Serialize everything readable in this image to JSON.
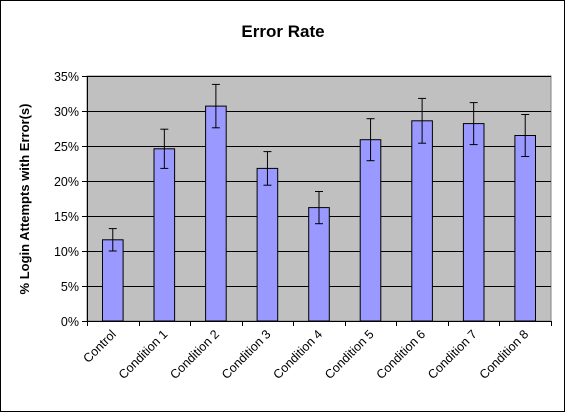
{
  "chart_data": {
    "type": "bar",
    "title": "Error Rate",
    "xlabel": "",
    "ylabel": "% Login Attempts with Error(s)",
    "categories": [
      "Control",
      "Condition 1",
      "Condition 2",
      "Condition 3",
      "Condition 4",
      "Condition 5",
      "Condition 6",
      "Condition 7",
      "Condition 8"
    ],
    "values": [
      11.6,
      24.6,
      30.7,
      21.8,
      16.2,
      25.9,
      28.6,
      28.2,
      26.5
    ],
    "error_plus_minus": [
      1.6,
      2.8,
      3.1,
      2.4,
      2.3,
      3.0,
      3.2,
      3.0,
      3.0
    ],
    "ylim": [
      0,
      35
    ],
    "yticks": [
      "0%",
      "5%",
      "10%",
      "15%",
      "20%",
      "25%",
      "30%",
      "35%"
    ],
    "grid": true,
    "legend": "none",
    "colors": {
      "bar_fill": "#9999ff",
      "bar_stroke": "#000000",
      "plot_background": "#c0c0c0",
      "gridline": "#000000"
    }
  }
}
